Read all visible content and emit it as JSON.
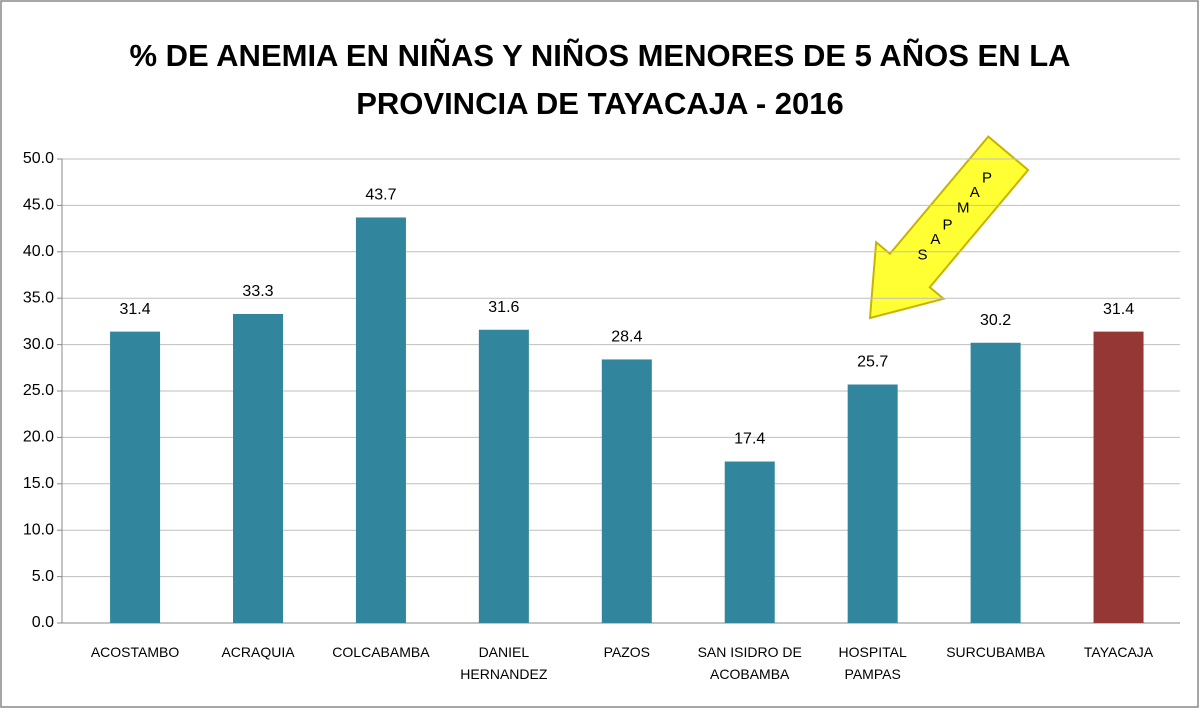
{
  "chart_data": {
    "type": "bar",
    "title": "% DE ANEMIA EN NIÑAS Y NIÑOS MENORES DE 5 AÑOS EN LA",
    "subtitle": "PROVINCIA DE TAYACAJA - 2016",
    "annotation": "PAMPAS",
    "categories": [
      "ACOSTAMBO",
      "ACRAQUIA",
      "COLCABAMBA",
      "DANIEL HERNANDEZ",
      "PAZOS",
      "SAN ISIDRO DE ACOBAMBA",
      "HOSPITAL PAMPAS",
      "SURCUBAMBA",
      "TAYACAJA"
    ],
    "values": [
      31.4,
      33.3,
      43.7,
      31.6,
      28.4,
      17.4,
      25.7,
      30.2,
      31.4
    ],
    "colors": [
      "#31859c",
      "#31859c",
      "#31859c",
      "#31859c",
      "#31859c",
      "#31859c",
      "#31859c",
      "#31859c",
      "#953735"
    ],
    "ylim": [
      0,
      50
    ],
    "yticks": [
      {
        "value": 0,
        "label": "0.0"
      },
      {
        "value": 5,
        "label": "5.0"
      },
      {
        "value": 10,
        "label": "10.0"
      },
      {
        "value": 15,
        "label": "15.0"
      },
      {
        "value": 20,
        "label": "20.0"
      },
      {
        "value": 25,
        "label": "25.0"
      },
      {
        "value": 30,
        "label": "30.0"
      },
      {
        "value": 35,
        "label": "35.0"
      },
      {
        "value": 40,
        "label": "40.0"
      },
      {
        "value": 45,
        "label": "45.0"
      },
      {
        "value": 50,
        "label": "50.0"
      }
    ],
    "grid": true
  }
}
